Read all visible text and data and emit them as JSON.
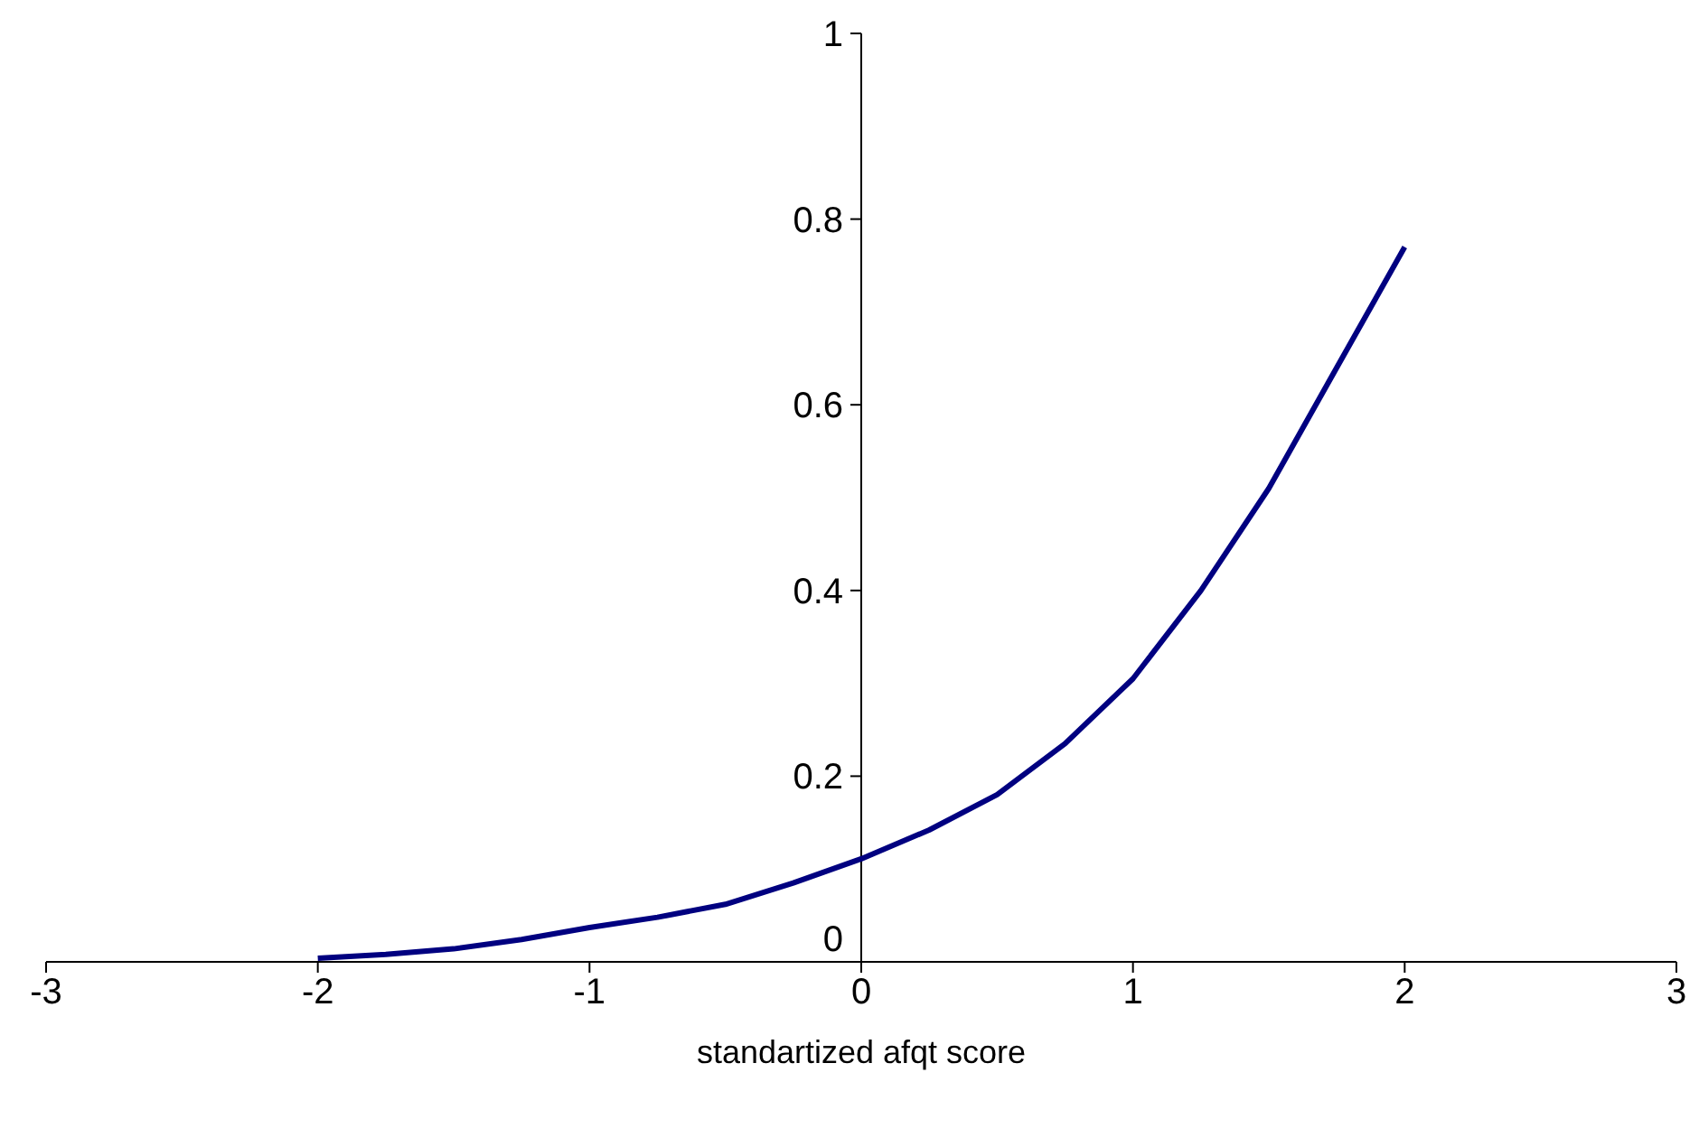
{
  "chart_data": {
    "type": "line",
    "xlabel": "standartized afqt score",
    "x": [
      -2,
      -1.75,
      -1.5,
      -1.25,
      -1,
      -0.75,
      -0.5,
      -0.25,
      0,
      0.25,
      0.5,
      0.75,
      1,
      1.25,
      1.5,
      1.75,
      2
    ],
    "series": [
      {
        "color": "#000080",
        "values": [
          0.004,
          0.008,
          0.014,
          0.024,
          0.037,
          0.048,
          0.062,
          0.085,
          0.111,
          0.142,
          0.18,
          0.235,
          0.305,
          0.4,
          0.51,
          0.64,
          0.77
        ]
      }
    ],
    "xlim": [
      -3,
      3
    ],
    "ylim": [
      0,
      1
    ],
    "xticks": [
      -3,
      -2,
      -1,
      0,
      1,
      2,
      3
    ],
    "yticks": [
      0,
      0.2,
      0.4,
      0.6,
      0.8,
      1
    ],
    "grid": false,
    "legend": false,
    "marker": "none",
    "line_style": "solid"
  }
}
